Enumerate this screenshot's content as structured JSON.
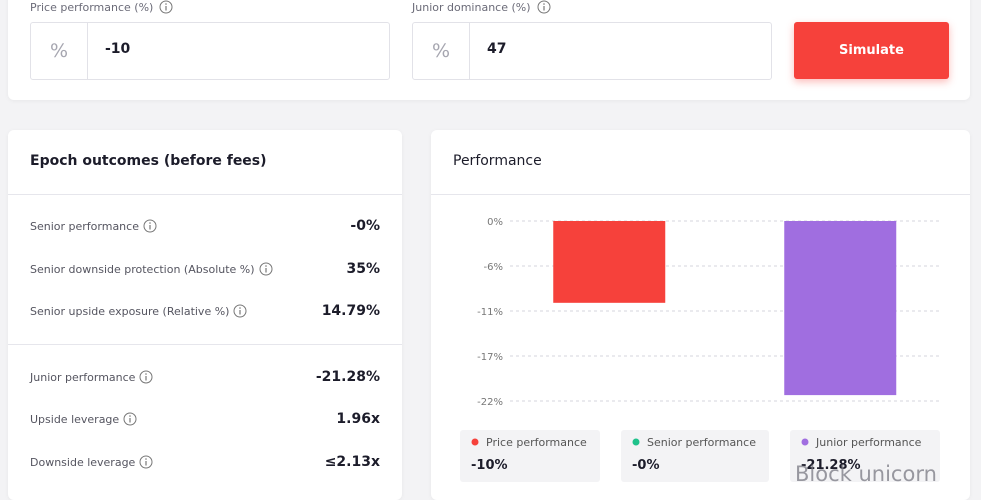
{
  "inputs": [
    {
      "label": "Price performance (%)",
      "unit": "%",
      "value": "-10"
    },
    {
      "label": "Junior dominance (%)",
      "unit": "%",
      "value": "47"
    }
  ],
  "button": "Simulate",
  "outcomes": {
    "title": "Epoch outcomes (before fees)",
    "groups": [
      [
        {
          "label": "Senior performance",
          "value": "-0%"
        },
        {
          "label": "Senior downside protection (Absolute %)",
          "value": "35%"
        },
        {
          "label": "Senior upside exposure (Relative %)",
          "value": "14.79%"
        }
      ],
      [
        {
          "label": "Junior performance",
          "value": "-21.28%"
        },
        {
          "label": "Upside leverage",
          "value": "1.96x"
        },
        {
          "label": "Downside leverage",
          "value": "≤2.13x"
        }
      ]
    ]
  },
  "chart_data": {
    "type": "bar",
    "title": "Performance",
    "categories": [
      "Price performance",
      "Senior performance",
      "Junior performance"
    ],
    "values": [
      -10,
      0,
      -21.28
    ],
    "value_labels": [
      "-10%",
      "-0%",
      "-21.28%"
    ],
    "colors": [
      "#f6413b",
      "#1fc28b",
      "#a06ee0"
    ],
    "ylim": [
      -22,
      0
    ],
    "yticks": [
      {
        "value": 0,
        "label": "0%"
      },
      {
        "value": -5.5,
        "label": "-6%"
      },
      {
        "value": -11,
        "label": "-11%"
      },
      {
        "value": -16.5,
        "label": "-17%"
      },
      {
        "value": -22,
        "label": "-22%"
      }
    ],
    "grid": true
  },
  "watermark": "Block unicorn"
}
